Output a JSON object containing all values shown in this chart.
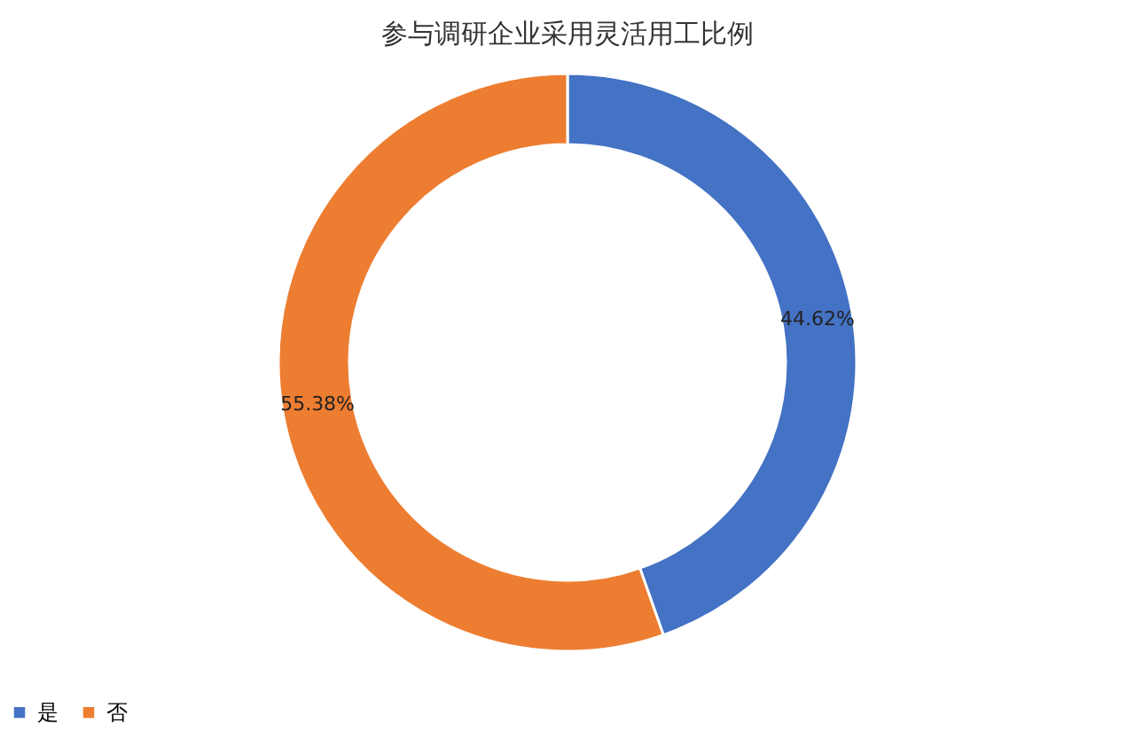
{
  "chart_data": {
    "type": "donut",
    "title": "参与调研企业采用灵活用工比例",
    "categories": [
      "是",
      "否"
    ],
    "values": [
      44.62,
      55.38
    ],
    "colors": [
      "#4472c4",
      "#ed7d31"
    ],
    "value_labels": [
      "44.62%",
      "55.38%"
    ],
    "legend": "bottom"
  }
}
